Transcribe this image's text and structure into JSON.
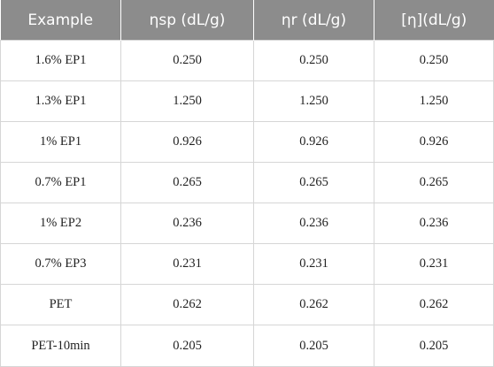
{
  "table": {
    "columns": [
      "Example",
      "ηsp (dL/g)",
      "ηr (dL/g)",
      "[η](dL/g)"
    ],
    "rows": [
      [
        "1.6% EP1",
        "0.250",
        "0.250",
        "0.250"
      ],
      [
        "1.3% EP1",
        "1.250",
        "1.250",
        "1.250"
      ],
      [
        "1% EP1",
        "0.926",
        "0.926",
        "0.926"
      ],
      [
        "0.7% EP1",
        "0.265",
        "0.265",
        "0.265"
      ],
      [
        "1% EP2",
        "0.236",
        "0.236",
        "0.236"
      ],
      [
        "0.7% EP3",
        "0.231",
        "0.231",
        "0.231"
      ],
      [
        "PET",
        "0.262",
        "0.262",
        "0.262"
      ],
      [
        "PET-10min",
        "0.205",
        "0.205",
        "0.205"
      ]
    ]
  },
  "colors": {
    "header_bg": "#8c8c8c",
    "header_text": "#ffffff",
    "border": "#d6d6d6"
  }
}
